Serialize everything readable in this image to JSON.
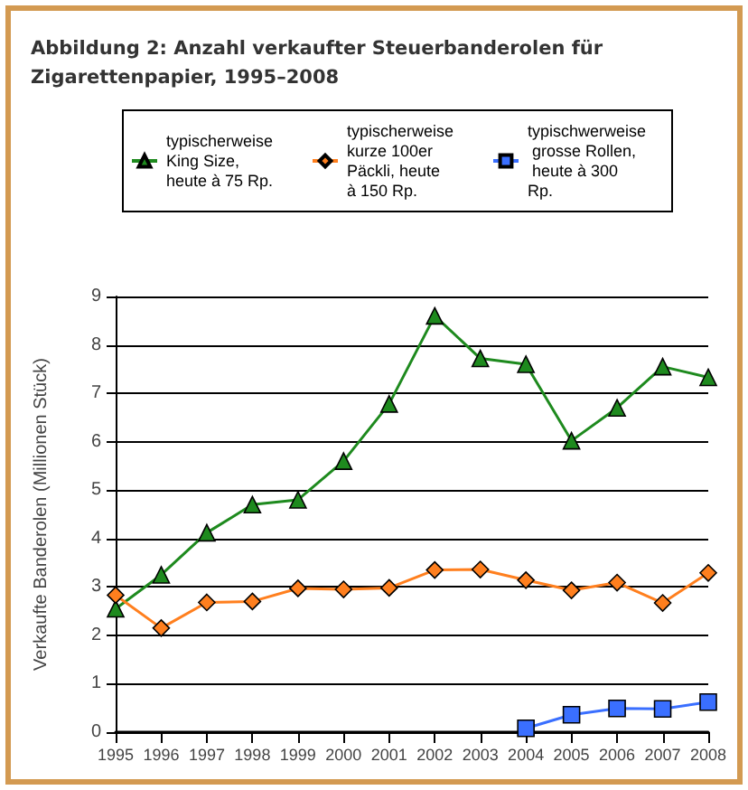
{
  "chart_data": {
    "type": "line",
    "title": "Abbildung 2: Anzahl verkaufter Steuerbanderolen für Zigarettenpapier, 1995–2008",
    "ylabel": "Verkaufte Banderolen (Millionen Stück)",
    "categories": [
      "1995",
      "1996",
      "1997",
      "1998",
      "1999",
      "2000",
      "2001",
      "2002",
      "2003",
      "2004",
      "2005",
      "2006",
      "2007",
      "2008"
    ],
    "series": [
      {
        "name": "typischerweise King Size, heute à 75 Rp.",
        "color": "#1e8a1e",
        "marker": "triangle",
        "values": [
          2.55,
          3.25,
          4.12,
          4.7,
          4.8,
          5.6,
          6.78,
          8.6,
          7.72,
          7.6,
          6.02,
          6.7,
          7.55,
          7.33
        ]
      },
      {
        "name": "typischerweise kurze 100er Päckli, heute à 150 Rp.",
        "color": "#ff7f1e",
        "marker": "diamond",
        "values": [
          2.83,
          2.15,
          2.68,
          2.7,
          2.97,
          2.95,
          2.98,
          3.35,
          3.36,
          3.14,
          2.93,
          3.09,
          2.67,
          3.29
        ]
      },
      {
        "name": "typischwerweise grosse Rollen, heute à 300 Rp.",
        "color": "#3a6fff",
        "marker": "square",
        "values": [
          null,
          null,
          null,
          null,
          null,
          null,
          null,
          null,
          null,
          0.08,
          0.36,
          0.49,
          0.48,
          0.62
        ]
      }
    ],
    "ylim": [
      0,
      9
    ],
    "yticks": [
      0,
      1,
      2,
      3,
      4,
      5,
      6,
      7,
      8,
      9
    ],
    "grid": "y",
    "legend": "top"
  }
}
